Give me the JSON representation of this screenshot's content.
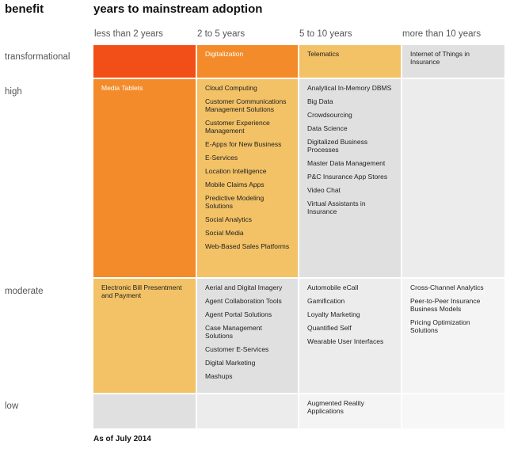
{
  "header": {
    "benefit_label": "benefit",
    "title": "years to mainstream adoption"
  },
  "columns": [
    "less than 2 years",
    "2 to 5 years",
    "5 to 10 years",
    "more than 10 years"
  ],
  "rows": [
    "transformational",
    "high",
    "moderate",
    "low"
  ],
  "colors": {
    "red": "#f24e18",
    "orange": "#f38b2a",
    "amber": "#f3c266",
    "gray_dark": "#e0e0e0",
    "gray_light": "#f4f4f4"
  },
  "cells": {
    "transformational": {
      "lt2": [],
      "c2to5": [
        "Digitalization"
      ],
      "c5to10": [
        "Telematics"
      ],
      "gt10": [
        "Internet of Things in Insurance"
      ]
    },
    "high": {
      "lt2": [
        "Media Tablets"
      ],
      "c2to5": [
        "Cloud Computing",
        "Customer Communications Management Solutions",
        "Customer Experience Management",
        "E-Apps for New Business",
        "E-Services",
        "Location Intelligence",
        "Mobile Claims Apps",
        "Predictive Modeling Solutions",
        "Social Analytics",
        "Social Media",
        "Web-Based Sales Platforms"
      ],
      "c5to10": [
        "Analytical In-Memory DBMS",
        "Big Data",
        "Crowdsourcing",
        "Data Science",
        "Digitalized Business Processes",
        "Master Data Management",
        "P&C Insurance App Stores",
        "Video Chat",
        "Virtual Assistants in Insurance"
      ],
      "gt10": []
    },
    "moderate": {
      "lt2": [
        "Electronic Bill Presentment and Payment"
      ],
      "c2to5": [
        "Aerial and Digital Imagery",
        "Agent Collaboration Tools",
        "Agent Portal Solutions",
        "Case Management Solutions",
        "Customer E-Services",
        "Digital Marketing",
        "Mashups"
      ],
      "c5to10": [
        "Automobile eCall",
        "Gamification",
        "Loyalty Marketing",
        "Quantified Self",
        "Wearable User Interfaces"
      ],
      "gt10": [
        "Cross-Channel Analytics",
        "Peer-to-Peer Insurance Business Models",
        "Pricing Optimization Solutions"
      ]
    },
    "low": {
      "lt2": [],
      "c2to5": [],
      "c5to10": [
        "Augmented Reality Applications"
      ],
      "gt10": []
    }
  },
  "footer": "As of July 2014"
}
